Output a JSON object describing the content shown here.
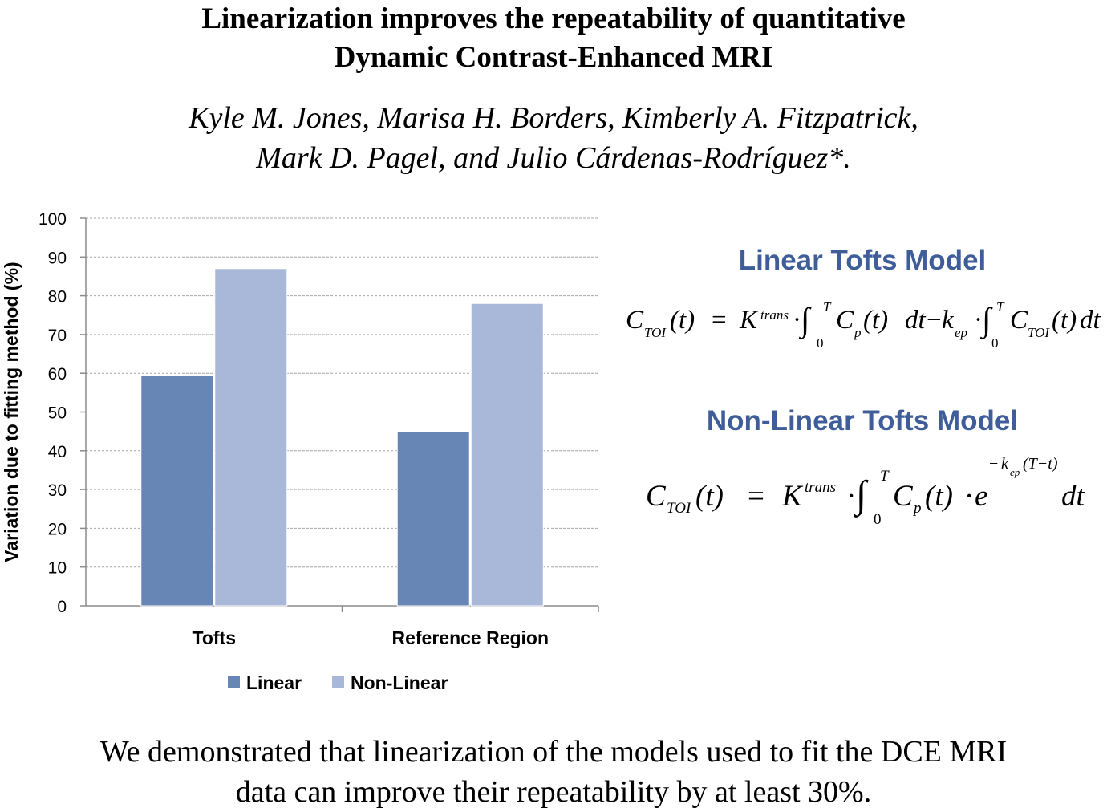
{
  "title": {
    "line1": "Linearization improves the repeatability of quantitative",
    "line2": "Dynamic Contrast-Enhanced MRI"
  },
  "authors": {
    "line1": "Kyle M. Jones, Marisa H. Borders, Kimberly A. Fitzpatrick,",
    "line2": "Mark D. Pagel, and Julio Cárdenas-Rodríguez*."
  },
  "chart_data": {
    "type": "bar",
    "categories": [
      "Tofts",
      "Reference Region"
    ],
    "series": [
      {
        "name": "Linear",
        "values": [
          59.5,
          45
        ],
        "color": "#6886b5"
      },
      {
        "name": "Non-Linear",
        "values": [
          87,
          78
        ],
        "color": "#a9b8d8"
      }
    ],
    "ylabel": "Variation due to fitting method (%)",
    "ylim": [
      0,
      100
    ],
    "yticks": [
      0,
      10,
      20,
      30,
      40,
      50,
      60,
      70,
      80,
      90,
      100
    ],
    "grid": true,
    "legend": "bottom"
  },
  "models": {
    "linear": {
      "heading": "Linear Tofts Model",
      "equation": {
        "C": "C",
        "TOI": "TOI",
        "t_arg": "(t)",
        "eq": "=",
        "K": "K",
        "trans": "trans",
        "dot": "·",
        "int": "∫",
        "upper": "T",
        "lower": "0",
        "Cp": "C",
        "p": "p",
        "dt": "dt",
        "minus": "−",
        "k": "k",
        "ep": "ep"
      }
    },
    "nonlinear": {
      "heading": "Non-Linear Tofts Model",
      "equation": {
        "C": "C",
        "TOI": "TOI",
        "t_arg": "(t)",
        "eq": "=",
        "K": "K",
        "trans": "trans",
        "dot": "·",
        "int": "∫",
        "upper": "T",
        "lower": "0",
        "Cp": "C",
        "p": "p",
        "e": "e",
        "exp_minus": "−",
        "k": "k",
        "ep": "ep",
        "exp_arg": "(T−t)",
        "dt": "dt"
      }
    }
  },
  "conclusion": {
    "line1": "We demonstrated that linearization of the models used to fit the DCE MRI",
    "line2": "data can improve their repeatability by at least 30%."
  }
}
